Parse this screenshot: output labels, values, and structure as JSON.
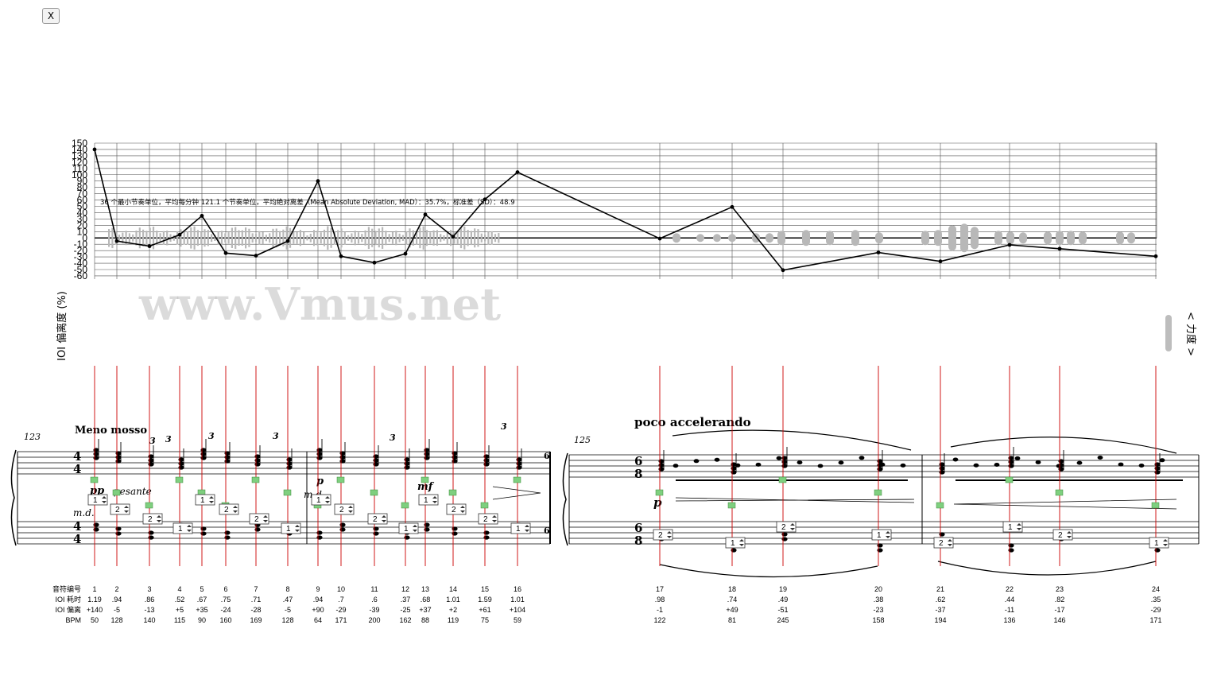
{
  "ui": {
    "close_label": "X"
  },
  "chart_data": {
    "type": "line",
    "ylabel": "IOI 偏离度 (%)",
    "right_label": "< 力度 >",
    "annotation": "36 个最小节奏单位，平均每分钟 121.1 个节奏单位，平均绝对离差（Mean Absolute Deviation, MAD）：35.7%，标准差（SD）：48.9",
    "watermark": "www.Vmus.net",
    "ylim": [
      -60,
      150
    ],
    "ytick_step": 10,
    "grid": true,
    "line_color": "#000000",
    "marker_color": "#cc0000",
    "row_labels": [
      "音符编号",
      "IOI 耗时",
      "IOI 偏离",
      "BPM"
    ],
    "points": [
      {
        "n": "1",
        "ioi": "1.19",
        "dev": 140,
        "dev_label": "+140",
        "bpm": "50"
      },
      {
        "n": "2",
        "ioi": ".94",
        "dev": -5,
        "dev_label": "-5",
        "bpm": "128"
      },
      {
        "n": "3",
        "ioi": ".86",
        "dev": -13,
        "dev_label": "-13",
        "bpm": "140"
      },
      {
        "n": "4",
        "ioi": ".52",
        "dev": 5,
        "dev_label": "+5",
        "bpm": "115"
      },
      {
        "n": "5",
        "ioi": ".67",
        "dev": 35,
        "dev_label": "+35",
        "bpm": "90"
      },
      {
        "n": "6",
        "ioi": ".75",
        "dev": -24,
        "dev_label": "-24",
        "bpm": "160"
      },
      {
        "n": "7",
        "ioi": ".71",
        "dev": -28,
        "dev_label": "-28",
        "bpm": "169"
      },
      {
        "n": "8",
        "ioi": ".47",
        "dev": -5,
        "dev_label": "-5",
        "bpm": "128"
      },
      {
        "n": "9",
        "ioi": ".94",
        "dev": 90,
        "dev_label": "+90",
        "bpm": "64"
      },
      {
        "n": "10",
        "ioi": ".7",
        "dev": -29,
        "dev_label": "-29",
        "bpm": "171"
      },
      {
        "n": "11",
        "ioi": ".6",
        "dev": -39,
        "dev_label": "-39",
        "bpm": "200"
      },
      {
        "n": "12",
        "ioi": ".37",
        "dev": -25,
        "dev_label": "-25",
        "bpm": "162"
      },
      {
        "n": "13",
        "ioi": ".68",
        "dev": 37,
        "dev_label": "+37",
        "bpm": "88"
      },
      {
        "n": "14",
        "ioi": "1.01",
        "dev": 2,
        "dev_label": "+2",
        "bpm": "119"
      },
      {
        "n": "15",
        "ioi": "1.59",
        "dev": 61,
        "dev_label": "+61",
        "bpm": "75"
      },
      {
        "n": "16",
        "ioi": "1.01",
        "dev": 104,
        "dev_label": "+104",
        "bpm": "59"
      },
      {
        "n": "17",
        "ioi": ".98",
        "dev": -1,
        "dev_label": "-1",
        "bpm": "122"
      },
      {
        "n": "18",
        "ioi": ".74",
        "dev": 49,
        "dev_label": "+49",
        "bpm": "81"
      },
      {
        "n": "19",
        "ioi": ".49",
        "dev": -51,
        "dev_label": "-51",
        "bpm": "245"
      },
      {
        "n": "20",
        "ioi": ".38",
        "dev": -23,
        "dev_label": "-23",
        "bpm": "158"
      },
      {
        "n": "21",
        "ioi": ".62",
        "dev": -37,
        "dev_label": "-37",
        "bpm": "194"
      },
      {
        "n": "22",
        "ioi": ".44",
        "dev": -11,
        "dev_label": "-11",
        "bpm": "136"
      },
      {
        "n": "23",
        "ioi": ".82",
        "dev": -17,
        "dev_label": "-17",
        "bpm": "146"
      },
      {
        "n": "24",
        "ioi": ".35",
        "dev": -29,
        "dev_label": "-29",
        "bpm": "171"
      }
    ]
  },
  "score": {
    "left_measure": "123",
    "right_measure": "125",
    "left_tempo": "Meno mosso",
    "right_tempo": "poco accelerando",
    "time_left": [
      "4",
      "4"
    ],
    "time_right": [
      "6",
      "8"
    ],
    "dynamics": [
      {
        "id": "pp-mark",
        "text": "pp"
      },
      {
        "id": "p-mark",
        "text": "p"
      },
      {
        "id": "mf-mark",
        "text": "mf"
      },
      {
        "id": "p-mark-2",
        "text": "p"
      }
    ],
    "expressions": [
      {
        "id": "md-1",
        "text": "m.d."
      },
      {
        "id": "pesante",
        "text": "pesante"
      },
      {
        "id": "md-2",
        "text": "m.d."
      }
    ],
    "tuplet": "3",
    "spinner_values": [
      "1",
      "2",
      "2",
      "1",
      "1",
      "2",
      "2",
      "1",
      "1",
      "2",
      "2",
      "1",
      "1",
      "2",
      "2",
      "1",
      "2",
      "1",
      "2",
      "1",
      "2",
      "1",
      "2",
      "1"
    ]
  }
}
